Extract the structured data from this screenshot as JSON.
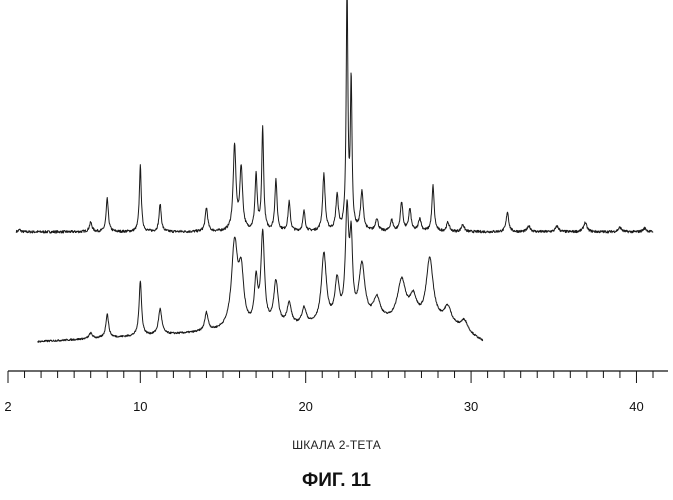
{
  "figure": {
    "caption": "ФИГ. 11"
  },
  "chart_data": {
    "type": "line",
    "title": "",
    "xlabel": "ШКАЛА 2-ТЕТА",
    "ylabel": "",
    "xlim": [
      2,
      41
    ],
    "ylim": [
      0,
      100
    ],
    "grid": false,
    "x_ticks": [
      2,
      10,
      20,
      30,
      40
    ],
    "x_minor_step": 1,
    "series": [
      {
        "baseline": 38,
        "x_range": [
          2.5,
          41
        ],
        "noise": 0.35,
        "peaks": [
          {
            "x": 2.7,
            "h": 0.6,
            "w": 0.08
          },
          {
            "x": 7.0,
            "h": 2.5,
            "w": 0.1
          },
          {
            "x": 8.0,
            "h": 9.0,
            "w": 0.08
          },
          {
            "x": 10.0,
            "h": 18.0,
            "w": 0.07
          },
          {
            "x": 11.2,
            "h": 7.5,
            "w": 0.08
          },
          {
            "x": 14.0,
            "h": 6.5,
            "w": 0.09
          },
          {
            "x": 15.7,
            "h": 23.0,
            "w": 0.1
          },
          {
            "x": 16.1,
            "h": 17.0,
            "w": 0.1
          },
          {
            "x": 17.0,
            "h": 15.0,
            "w": 0.08
          },
          {
            "x": 17.4,
            "h": 28.0,
            "w": 0.07
          },
          {
            "x": 18.2,
            "h": 14.0,
            "w": 0.08
          },
          {
            "x": 19.0,
            "h": 8.0,
            "w": 0.08
          },
          {
            "x": 19.9,
            "h": 5.5,
            "w": 0.08
          },
          {
            "x": 21.1,
            "h": 15.5,
            "w": 0.09
          },
          {
            "x": 21.9,
            "h": 9.5,
            "w": 0.09
          },
          {
            "x": 22.5,
            "h": 66.0,
            "w": 0.06
          },
          {
            "x": 22.75,
            "h": 40.0,
            "w": 0.06
          },
          {
            "x": 23.4,
            "h": 10.5,
            "w": 0.1
          },
          {
            "x": 24.3,
            "h": 3.5,
            "w": 0.1
          },
          {
            "x": 25.2,
            "h": 3.0,
            "w": 0.1
          },
          {
            "x": 25.8,
            "h": 8.0,
            "w": 0.09
          },
          {
            "x": 26.3,
            "h": 6.0,
            "w": 0.09
          },
          {
            "x": 26.9,
            "h": 3.5,
            "w": 0.1
          },
          {
            "x": 27.7,
            "h": 12.5,
            "w": 0.08
          },
          {
            "x": 28.6,
            "h": 2.5,
            "w": 0.1
          },
          {
            "x": 29.5,
            "h": 2.0,
            "w": 0.1
          },
          {
            "x": 32.2,
            "h": 5.5,
            "w": 0.09
          },
          {
            "x": 33.5,
            "h": 1.5,
            "w": 0.12
          },
          {
            "x": 35.2,
            "h": 1.5,
            "w": 0.12
          },
          {
            "x": 36.9,
            "h": 2.5,
            "w": 0.12
          },
          {
            "x": 39.0,
            "h": 1.2,
            "w": 0.12
          },
          {
            "x": 40.5,
            "h": 1.0,
            "w": 0.12
          }
        ]
      },
      {
        "baseline": 8,
        "x_range": [
          3.8,
          30.7
        ],
        "noise": 0.25,
        "drift": [
          [
            3.8,
            0
          ],
          [
            8.0,
            1.0
          ],
          [
            14.0,
            2.5
          ],
          [
            18.0,
            3.5
          ],
          [
            24.0,
            5.0
          ],
          [
            28.5,
            5.0
          ],
          [
            30.7,
            0
          ]
        ],
        "peaks": [
          {
            "x": 7.0,
            "h": 1.5,
            "w": 0.12
          },
          {
            "x": 8.0,
            "h": 6.5,
            "w": 0.1
          },
          {
            "x": 10.0,
            "h": 15.0,
            "w": 0.09
          },
          {
            "x": 11.2,
            "h": 7.0,
            "w": 0.12
          },
          {
            "x": 14.0,
            "h": 5.0,
            "w": 0.12
          },
          {
            "x": 15.7,
            "h": 23.0,
            "w": 0.22
          },
          {
            "x": 16.1,
            "h": 14.0,
            "w": 0.18
          },
          {
            "x": 17.0,
            "h": 12.0,
            "w": 0.12
          },
          {
            "x": 17.4,
            "h": 25.0,
            "w": 0.13
          },
          {
            "x": 18.2,
            "h": 12.0,
            "w": 0.16
          },
          {
            "x": 19.0,
            "h": 6.0,
            "w": 0.16
          },
          {
            "x": 19.9,
            "h": 4.5,
            "w": 0.16
          },
          {
            "x": 21.1,
            "h": 19.0,
            "w": 0.18
          },
          {
            "x": 21.9,
            "h": 11.0,
            "w": 0.16
          },
          {
            "x": 22.5,
            "h": 29.0,
            "w": 0.12
          },
          {
            "x": 22.75,
            "h": 20.0,
            "w": 0.1
          },
          {
            "x": 23.4,
            "h": 15.0,
            "w": 0.22
          },
          {
            "x": 24.3,
            "h": 6.0,
            "w": 0.25
          },
          {
            "x": 25.8,
            "h": 11.0,
            "w": 0.3
          },
          {
            "x": 26.5,
            "h": 6.0,
            "w": 0.25
          },
          {
            "x": 27.5,
            "h": 17.0,
            "w": 0.25
          },
          {
            "x": 28.6,
            "h": 4.0,
            "w": 0.25
          },
          {
            "x": 29.6,
            "h": 3.0,
            "w": 0.25
          }
        ]
      }
    ]
  }
}
